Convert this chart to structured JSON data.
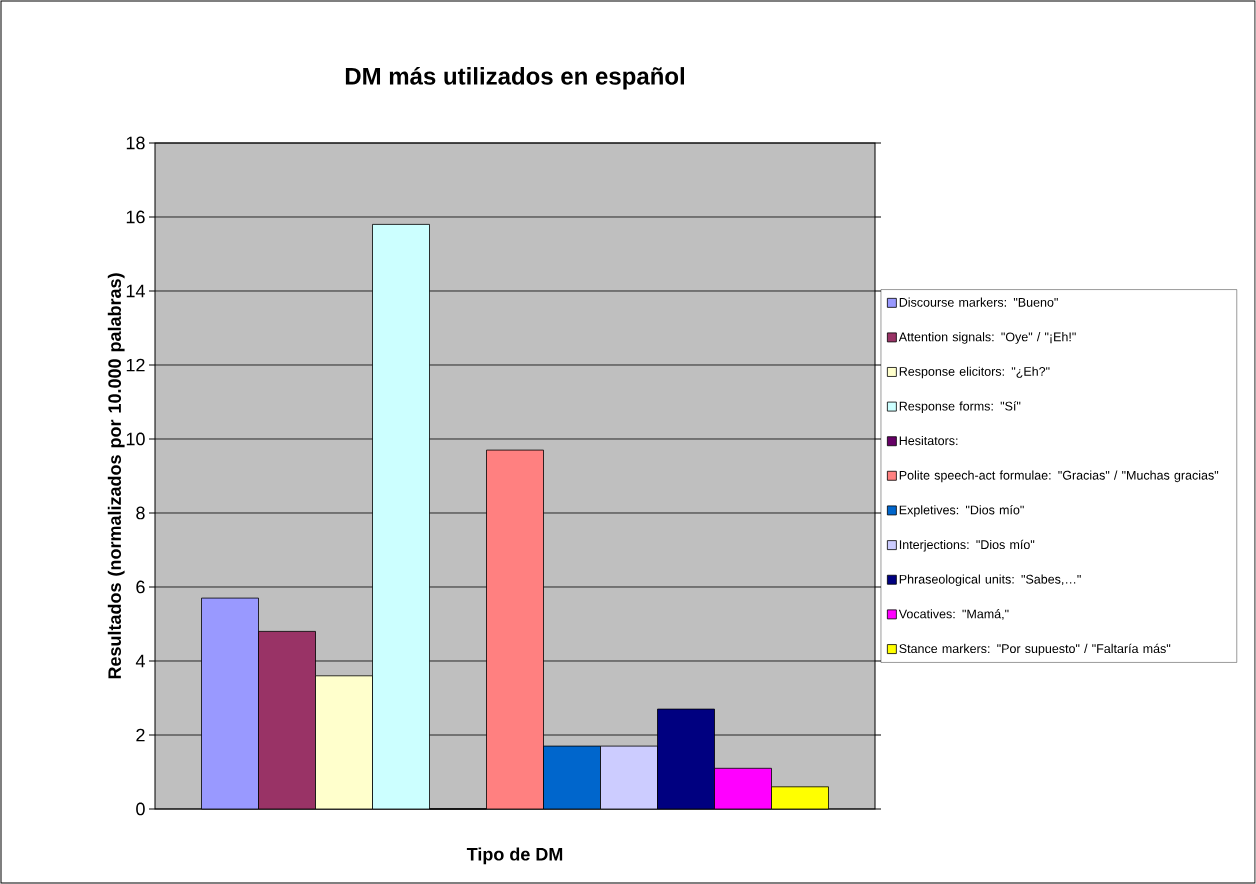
{
  "chart_data": {
    "type": "bar",
    "title": "DM más utilizados en español",
    "xlabel": "Tipo de DM",
    "ylabel": "Resultados (normalizados por 10.000 palabras)",
    "categories": [
      null
    ],
    "series": [
      {
        "name": "Discourse markers: \"Bueno\"",
        "color": "#9999ff",
        "values": [
          5.7
        ]
      },
      {
        "name": "Attention signals: \"Oye\" / \"¡Eh!\"",
        "color": "#993366",
        "values": [
          4.8
        ]
      },
      {
        "name": "Response elicitors: \"¿Eh?\"",
        "color": "#ffffcc",
        "values": [
          3.6
        ]
      },
      {
        "name": "Response forms: \"Sí\"",
        "color": "#ccffff",
        "values": [
          15.8
        ]
      },
      {
        "name": "Hesitators:",
        "color": "#660066",
        "values": [
          0
        ]
      },
      {
        "name": "Polite speech-act formulae: \"Gracias\" / \"Muchas gracias\"",
        "color": "#ff8080",
        "values": [
          9.7
        ]
      },
      {
        "name": "Expletives: \"Dios mío\"",
        "color": "#0066cc",
        "values": [
          1.7
        ]
      },
      {
        "name": "Interjections: \"Dios mío\"",
        "color": "#ccccff",
        "values": [
          1.7
        ]
      },
      {
        "name": "Phraseological units: \"Sabes,…\"",
        "color": "#000080",
        "values": [
          2.7
        ]
      },
      {
        "name": "Vocatives: \"Mamá,\"",
        "color": "#ff00ff",
        "values": [
          1.1
        ]
      },
      {
        "name": "Stance markers: \"Por supuesto\" / \"Faltaría más\"",
        "color": "#ffff00",
        "values": [
          0.6
        ]
      }
    ],
    "ylim": [
      0,
      18
    ],
    "yticks": [
      0,
      2,
      4,
      6,
      8,
      10,
      12,
      14,
      16,
      18
    ],
    "grid": "y",
    "legend": "right"
  }
}
